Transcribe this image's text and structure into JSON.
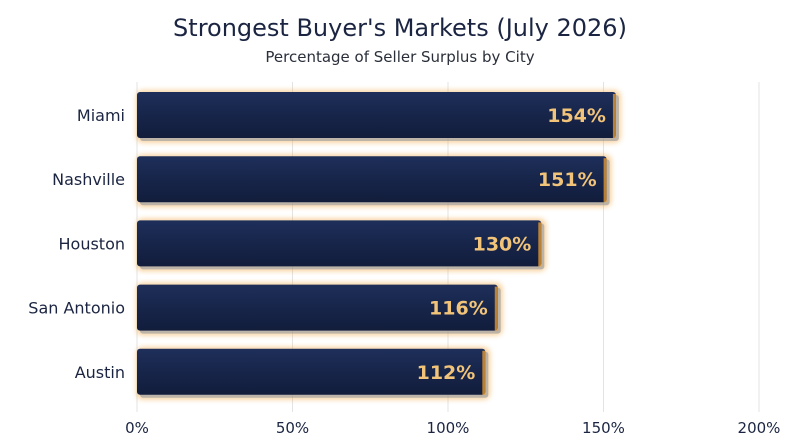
{
  "chart_data": {
    "type": "bar",
    "orientation": "horizontal",
    "title": "Strongest Buyer's Markets (July 2026)",
    "subtitle": "Percentage of Seller Surplus by City",
    "categories": [
      "Miami",
      "Nashville",
      "Houston",
      "San Antonio",
      "Austin"
    ],
    "values": [
      154,
      151,
      130,
      116,
      112
    ],
    "value_labels": [
      "154%",
      "151%",
      "130%",
      "116%",
      "112%"
    ],
    "x_ticks": [
      0,
      50,
      100,
      150,
      200
    ],
    "x_tick_labels": [
      "0%",
      "50%",
      "100%",
      "150%",
      "200%"
    ],
    "xlim": [
      0,
      200
    ],
    "grid": "vertical",
    "colors": {
      "bar": "#17254a",
      "glow": "#f0a030",
      "label": "#f2c47a",
      "grid": "#e3e3e3",
      "text": "#1b2542"
    }
  }
}
